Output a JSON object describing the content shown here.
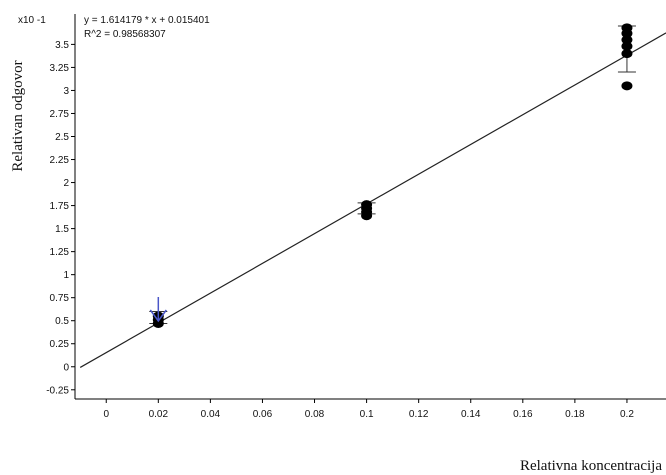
{
  "chart_data": {
    "type": "scatter",
    "equation_text": "y = 1.614179 * x  + 0.015401",
    "r2_text": "R^2 = 0.98568307",
    "xlabel": "Relativna koncentracija",
    "ylabel": "Relativan odgovor",
    "y_multiplier": "x10 -1",
    "xlim": [
      -0.012,
      0.215
    ],
    "ylim": [
      -0.35,
      3.83
    ],
    "x_ticks": [
      0,
      0.02,
      0.04,
      0.06,
      0.08,
      0.1,
      0.12,
      0.14,
      0.16,
      0.18,
      0.2
    ],
    "x_tick_labels": [
      "0",
      "0.02",
      "0.04",
      "0.06",
      "0.08",
      "0.1",
      "0.12",
      "0.14",
      "0.16",
      "0.18",
      "0.2"
    ],
    "y_ticks": [
      -0.25,
      0,
      0.25,
      0.5,
      0.75,
      1,
      1.25,
      1.5,
      1.75,
      2,
      2.25,
      2.5,
      2.75,
      3,
      3.25,
      3.5
    ],
    "y_tick_labels": [
      "-0.25",
      "0",
      "0.25",
      "0.5",
      "0.75",
      "1",
      "1.25",
      "1.5",
      "1.75",
      "2",
      "2.25",
      "2.5",
      "2.75",
      "3",
      "3.25",
      "3.5"
    ],
    "fit_line": {
      "slope": 16.14179,
      "intercept": 0.15401,
      "x_range": [
        -0.01,
        0.215
      ]
    },
    "points": [
      {
        "x": 0.02,
        "y": 0.47
      },
      {
        "x": 0.02,
        "y": 0.51
      },
      {
        "x": 0.02,
        "y": 0.55
      },
      {
        "x": 0.1,
        "y": 1.64
      },
      {
        "x": 0.1,
        "y": 1.68
      },
      {
        "x": 0.1,
        "y": 1.72
      },
      {
        "x": 0.1,
        "y": 1.76
      },
      {
        "x": 0.2,
        "y": 3.05
      },
      {
        "x": 0.2,
        "y": 3.4
      },
      {
        "x": 0.2,
        "y": 3.48
      },
      {
        "x": 0.2,
        "y": 3.55
      },
      {
        "x": 0.2,
        "y": 3.62
      },
      {
        "x": 0.2,
        "y": 3.68
      }
    ],
    "error_bars": [
      {
        "x": 0.02,
        "low": 0.47,
        "high": 0.6
      },
      {
        "x": 0.1,
        "low": 1.66,
        "high": 1.78
      },
      {
        "x": 0.2,
        "low": 3.2,
        "high": 3.7
      }
    ],
    "arrow_annotation": {
      "x": 0.02,
      "color": "#4a56c8"
    },
    "grid": false
  }
}
